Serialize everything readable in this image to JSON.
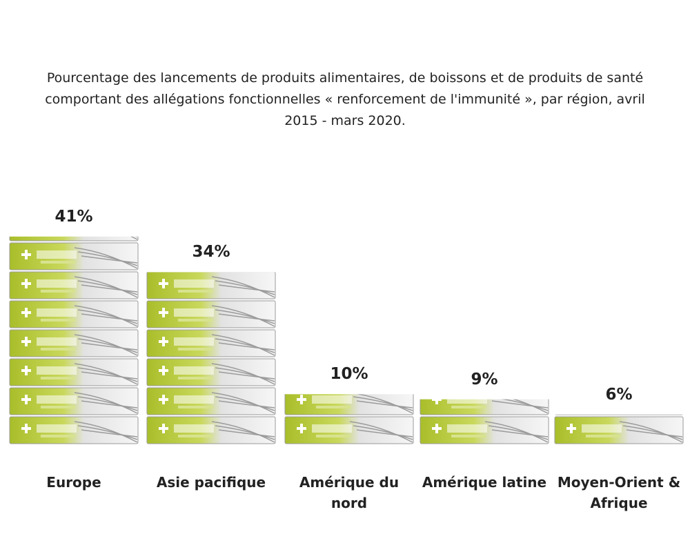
{
  "chart_data": {
    "type": "pictorial-bar",
    "title": "Pourcentage des lancements de produits alimentaires, de boissons et de produits de santé comportant des allégations fonctionnelles « renforcement de l'immunité », par région, avril 2015 - mars 2020.",
    "categories": [
      "Europe",
      "Asie pacifique",
      "Amérique du nord",
      "Amérique latine",
      "Moyen-Orient & Afrique"
    ],
    "values": [
      41,
      34,
      10,
      9,
      6
    ],
    "value_labels": [
      "41%",
      "34%",
      "10%",
      "9%",
      "6%"
    ],
    "color": "#b5c832"
  }
}
